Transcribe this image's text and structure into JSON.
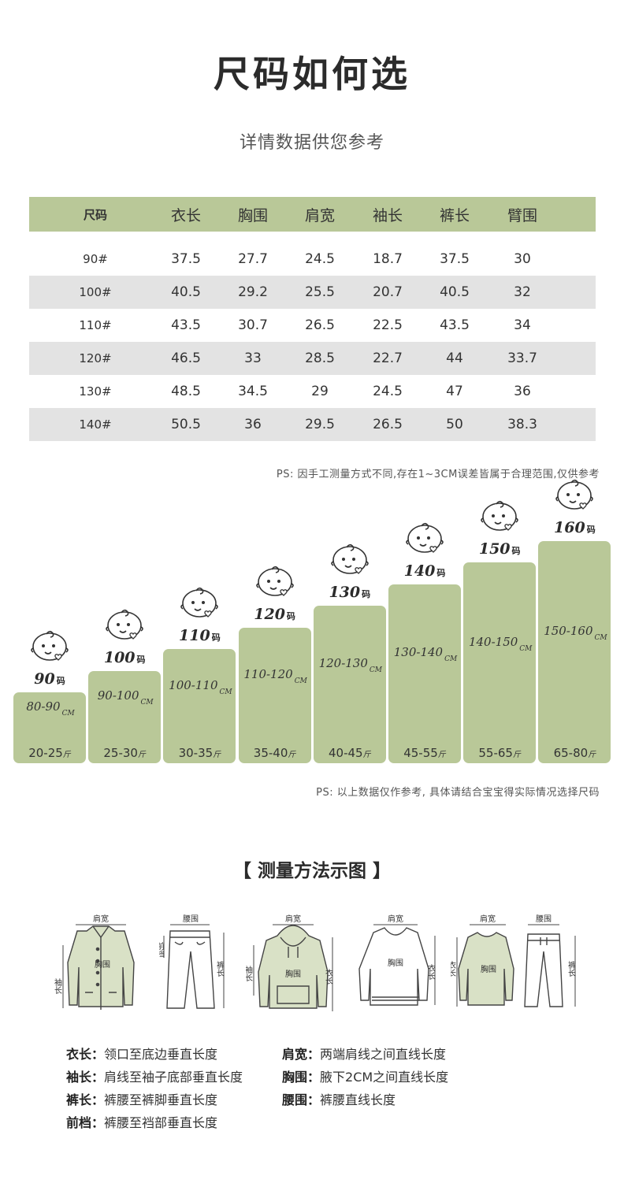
{
  "title": "尺码如何选",
  "subtitle": "详情数据供您参考",
  "size_table": {
    "headers": [
      "尺码",
      "衣长",
      "胸围",
      "肩宽",
      "袖长",
      "裤长",
      "臂围"
    ],
    "rows": [
      [
        "90#",
        "37.5",
        "27.7",
        "24.5",
        "18.7",
        "37.5",
        "30"
      ],
      [
        "100#",
        "40.5",
        "29.2",
        "25.5",
        "20.7",
        "40.5",
        "32"
      ],
      [
        "110#",
        "43.5",
        "30.7",
        "26.5",
        "22.5",
        "43.5",
        "34"
      ],
      [
        "120#",
        "46.5",
        "33",
        "28.5",
        "22.7",
        "44",
        "33.7"
      ],
      [
        "130#",
        "48.5",
        "34.5",
        "29",
        "24.5",
        "47",
        "36"
      ],
      [
        "140#",
        "50.5",
        "36",
        "29.5",
        "26.5",
        "50",
        "38.3"
      ]
    ]
  },
  "note1": "PS: 因手工测量方式不同,存在1~3CM误差皆属于合理范围,仅供参考",
  "growth": {
    "unit_cm": "CM",
    "unit_ma": "码",
    "unit_jin": "斤",
    "items": [
      {
        "size": "90",
        "height": "80-90",
        "weight": "20-25"
      },
      {
        "size": "100",
        "height": "90-100",
        "weight": "25-30"
      },
      {
        "size": "110",
        "height": "100-110",
        "weight": "30-35"
      },
      {
        "size": "120",
        "height": "110-120",
        "weight": "35-40"
      },
      {
        "size": "130",
        "height": "120-130",
        "weight": "40-45"
      },
      {
        "size": "140",
        "height": "130-140",
        "weight": "45-55"
      },
      {
        "size": "150",
        "height": "140-150",
        "weight": "55-65"
      },
      {
        "size": "160",
        "height": "150-160",
        "weight": "65-80"
      }
    ]
  },
  "note2": "PS: 以上数据仅作参考, 具体请结合宝宝得实际情况选择尺码",
  "method_title": "【 测量方法示图 】",
  "garment_labels": {
    "shoulder": "肩宽",
    "waist": "腰围",
    "chest": "胸围",
    "sleeve": "袖长",
    "pants_length": "裤长",
    "rise": "前档",
    "length": "衣长"
  },
  "definitions": [
    {
      "term": "衣长：",
      "desc": "领口至底边垂直长度"
    },
    {
      "term": "肩宽：",
      "desc": "两端肩线之间直线长度"
    },
    {
      "term": "袖长：",
      "desc": "肩线至袖子底部垂直长度"
    },
    {
      "term": "胸围：",
      "desc": "腋下2CM之间直线长度"
    },
    {
      "term": "裤长：",
      "desc": "裤腰至裤脚垂直长度"
    },
    {
      "term": "腰围：",
      "desc": "裤腰直线长度"
    },
    {
      "term": "前档：",
      "desc": "裤腰至裆部垂直长度"
    }
  ],
  "colors": {
    "accent": "#b9c898",
    "row_shade": "#e3e3e3"
  },
  "icons": [
    "baby-face-icon",
    "jacket-icon",
    "pants-icon",
    "hoodie-icon",
    "sweater-icon",
    "tracksuit-icon"
  ]
}
